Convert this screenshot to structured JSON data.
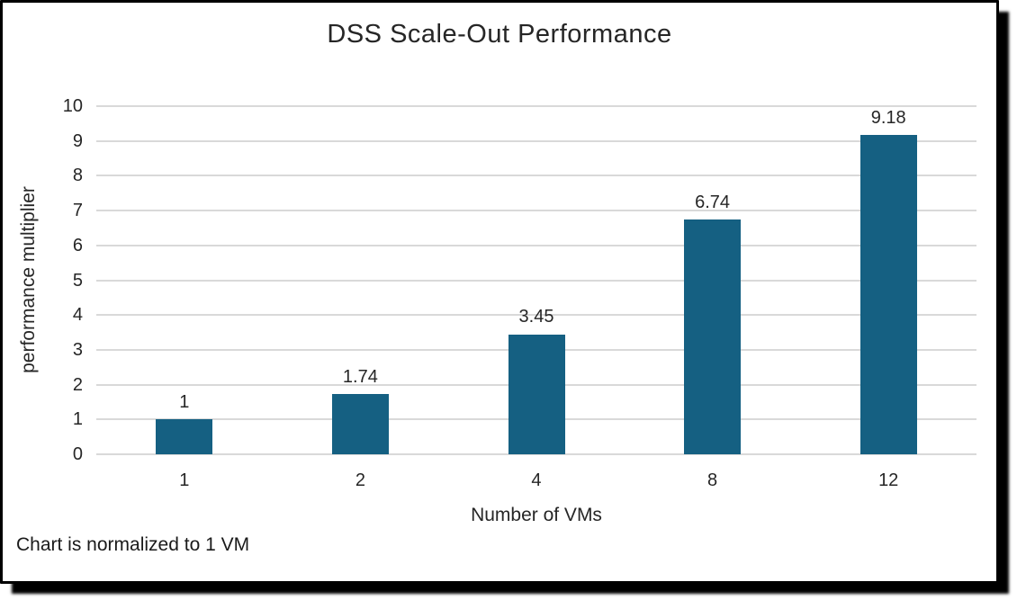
{
  "chart_data": {
    "type": "bar",
    "title": "DSS Scale-Out Performance",
    "categories": [
      "1",
      "2",
      "4",
      "8",
      "12"
    ],
    "values": [
      1,
      1.74,
      3.45,
      6.74,
      9.18
    ],
    "value_labels": [
      "1",
      "1.74",
      "3.45",
      "6.74",
      "9.18"
    ],
    "xlabel": "Number of VMs",
    "ylabel": "performance multiplier",
    "ylim": [
      0,
      10
    ],
    "ytick_step": 1,
    "grid": true,
    "legend": "none",
    "bar_color": "#156082",
    "gridline_color": "#d9d9d9",
    "text_color": "#262626"
  },
  "footer": {
    "note": "Chart is normalized to 1 VM"
  }
}
